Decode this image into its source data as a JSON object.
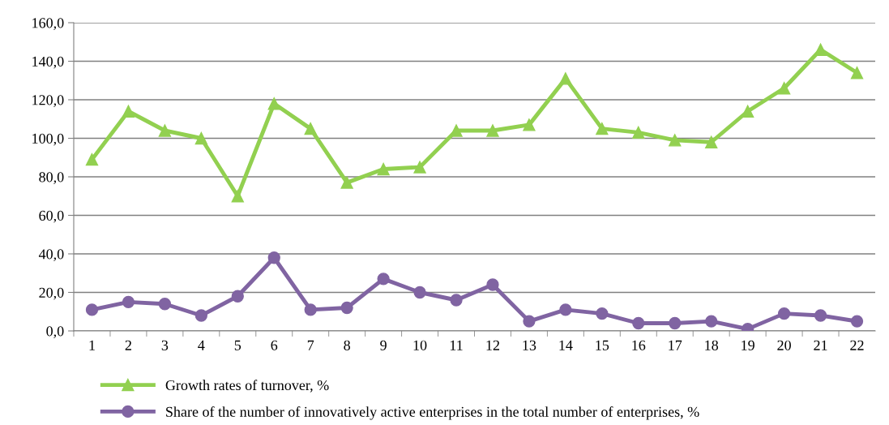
{
  "chart_data": {
    "type": "line",
    "categories": [
      "1",
      "2",
      "3",
      "4",
      "5",
      "6",
      "7",
      "8",
      "9",
      "10",
      "11",
      "12",
      "13",
      "14",
      "15",
      "16",
      "17",
      "18",
      "19",
      "20",
      "21",
      "22"
    ],
    "series": [
      {
        "name": "Growth rates of turnover, %",
        "color": "#92d050",
        "marker": "triangle",
        "values": [
          89,
          114,
          104,
          100,
          70,
          118,
          105,
          77,
          84,
          85,
          104,
          104,
          107,
          131,
          105,
          103,
          99,
          98,
          114,
          126,
          146,
          134
        ]
      },
      {
        "name": "Share of the number of innovatively active enterprises in the total number of enterprises, %",
        "color": "#8064a2",
        "marker": "circle",
        "values": [
          11,
          15,
          14,
          8,
          18,
          38,
          11,
          12,
          27,
          20,
          16,
          24,
          5,
          11,
          9,
          4,
          4,
          5,
          1,
          9,
          8,
          5
        ]
      }
    ],
    "ylim": [
      0,
      160
    ],
    "yticks": [
      {
        "value": 0,
        "label": "0,0"
      },
      {
        "value": 20,
        "label": "20,0"
      },
      {
        "value": 40,
        "label": "40,0"
      },
      {
        "value": 60,
        "label": "60,0"
      },
      {
        "value": 80,
        "label": "80,0"
      },
      {
        "value": 100,
        "label": "100,0"
      },
      {
        "value": 120,
        "label": "120,0"
      },
      {
        "value": 140,
        "label": "140,0"
      },
      {
        "value": 160,
        "label": "160,0"
      }
    ],
    "grid": "y",
    "legend": "bottom",
    "line_style": "solid"
  }
}
